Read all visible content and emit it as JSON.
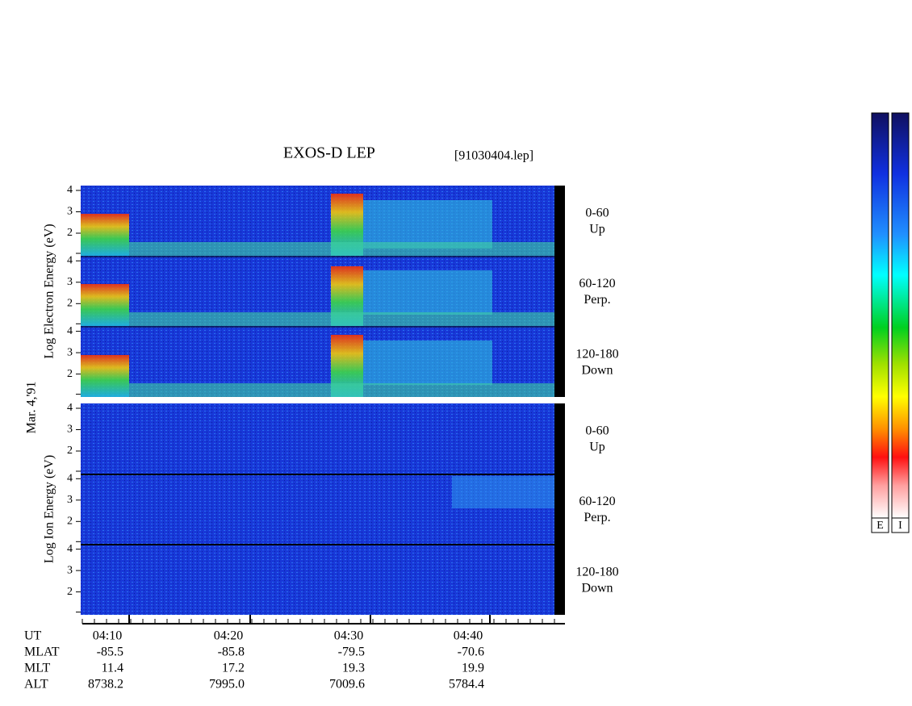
{
  "header": {
    "title": "EXOS-D LEP",
    "file": "[91030404.lep]"
  },
  "date": "Mar. 4,'91",
  "groups": [
    {
      "axis_label": "Log  Electron  Energy (eV)"
    },
    {
      "axis_label": "Log  Ion  Energy (eV)"
    }
  ],
  "panel_labels": [
    {
      "range": "0-60",
      "direction": "Up"
    },
    {
      "range": "60-120",
      "direction": "Perp."
    },
    {
      "range": "120-180",
      "direction": "Down"
    }
  ],
  "energy_ticks": [
    "4",
    "3",
    "2"
  ],
  "ephemeris": {
    "labels": [
      "UT",
      "MLAT",
      "MLT",
      "ALT"
    ],
    "columns": [
      [
        "04:10",
        "-85.5",
        "11.4",
        "8738.2"
      ],
      [
        "04:20",
        "-85.8",
        "17.2",
        "7995.0"
      ],
      [
        "04:30",
        "-79.5",
        "19.3",
        "7009.6"
      ],
      [
        "04:40",
        "-70.6",
        "19.9",
        "5784.4"
      ]
    ]
  },
  "colorbar": {
    "labels": [
      "E",
      "I"
    ]
  }
}
